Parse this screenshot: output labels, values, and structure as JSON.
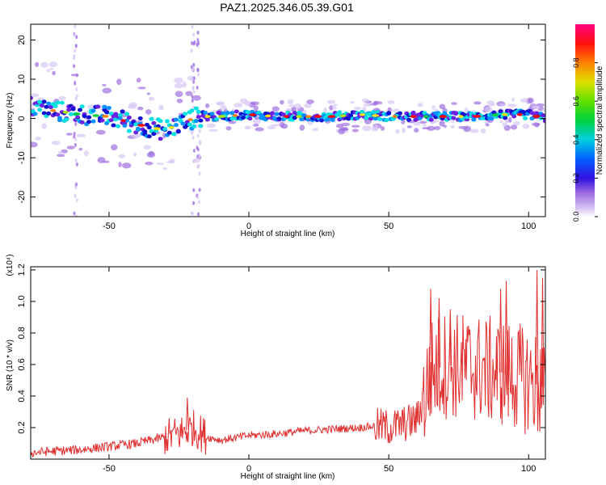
{
  "figure_title": "PAZ1.2025.346.05.39.G01",
  "chart_data": [
    {
      "type": "heatmap",
      "xlabel": "Height of straight line (km)",
      "ylabel": "Frequency (Hz)",
      "xlim": [
        -78,
        106
      ],
      "ylim": [
        -25,
        24
      ],
      "x_ticks": [
        -50,
        0,
        50,
        100
      ],
      "y_ticks": [
        -20,
        -10,
        0,
        10,
        20
      ],
      "colorbar_label": "Normalized spectral amplitude",
      "colorbar_range": [
        0,
        1
      ],
      "colorbar_ticks": [
        "0.0",
        "0.2",
        "0.4",
        "0.6",
        "0.8"
      ],
      "colormap": [
        "#ffffff",
        "#d9c7f5",
        "#a070e0",
        "#7020e0",
        "#1010d0",
        "#0090ff",
        "#00e0e0",
        "#00d040",
        "#b0e000",
        "#ffe000",
        "#ff8000",
        "#ff0000",
        "#ff0080"
      ],
      "ridge": {
        "x": [
          -78,
          -70,
          -60,
          -50,
          -40,
          -30,
          -20,
          -17,
          -10,
          0,
          10,
          20,
          30,
          40,
          50,
          60,
          70,
          80,
          90,
          100,
          106
        ],
        "y": [
          3,
          2,
          1,
          0.5,
          -1.5,
          -3,
          0,
          0.5,
          0.5,
          1,
          0.5,
          0.5,
          0.5,
          1,
          0.5,
          0.5,
          0.5,
          0.5,
          1,
          1,
          0
        ]
      }
    },
    {
      "type": "line",
      "xlabel": "Height of straight line (km)",
      "ylabel": "SNR (10 * v/v)",
      "y_scale_label": "(x10⁴)",
      "xlim": [
        -78,
        106
      ],
      "ylim": [
        0,
        1.22
      ],
      "x_ticks": [
        -50,
        0,
        50,
        100
      ],
      "y_ticks": [
        "0.2",
        "0.4",
        "0.6",
        "0.8",
        "1.0",
        "1.2"
      ],
      "line_color": "#e03030",
      "trend": {
        "x": [
          -78,
          -70,
          -60,
          -50,
          -40,
          -30,
          -25,
          -20,
          -15,
          -10,
          0,
          10,
          20,
          30,
          40,
          45,
          50,
          55,
          60,
          63,
          65,
          70,
          80,
          90,
          100,
          106
        ],
        "y": [
          0.04,
          0.05,
          0.06,
          0.08,
          0.1,
          0.14,
          0.16,
          0.2,
          0.14,
          0.12,
          0.15,
          0.16,
          0.18,
          0.19,
          0.2,
          0.21,
          0.2,
          0.22,
          0.25,
          0.4,
          0.55,
          0.6,
          0.58,
          0.55,
          0.5,
          0.45
        ]
      },
      "peaks": {
        "x": [
          -22,
          65,
          68,
          72,
          90,
          92,
          103,
          105
        ],
        "y": [
          0.39,
          1.08,
          1.02,
          0.95,
          1.08,
          1.13,
          1.2,
          1.15
        ]
      }
    }
  ]
}
